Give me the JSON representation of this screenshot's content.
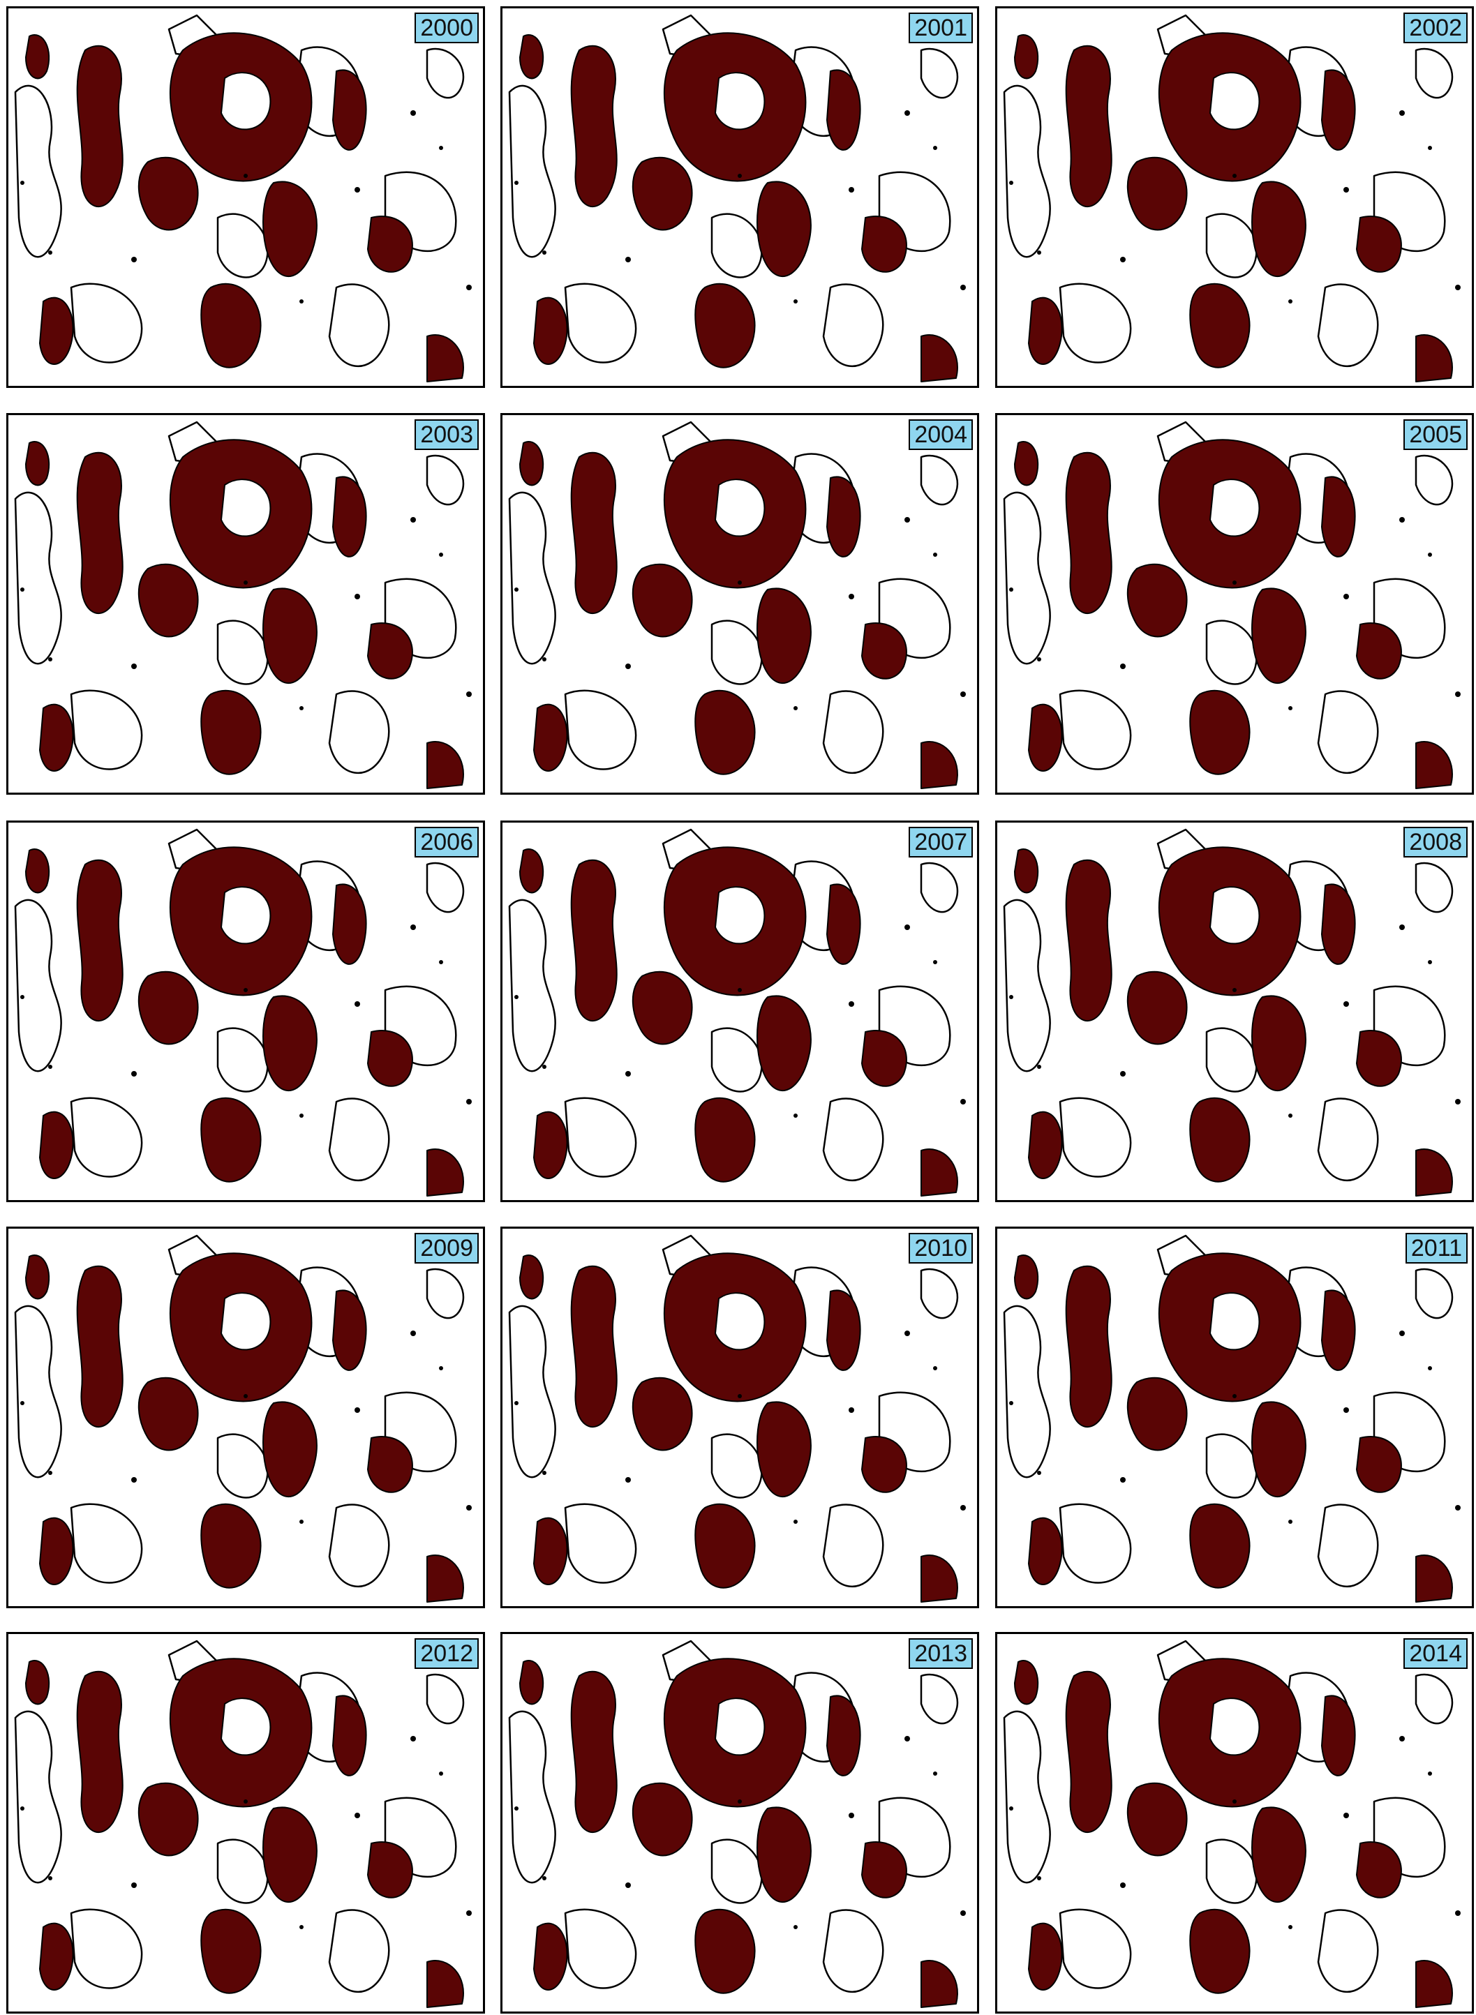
{
  "panels": [
    "2000",
    "2001",
    "2002",
    "2003",
    "2004",
    "2005",
    "2006",
    "2007",
    "2008",
    "2009",
    "2010",
    "2011",
    "2012",
    "2013",
    "2014"
  ]
}
